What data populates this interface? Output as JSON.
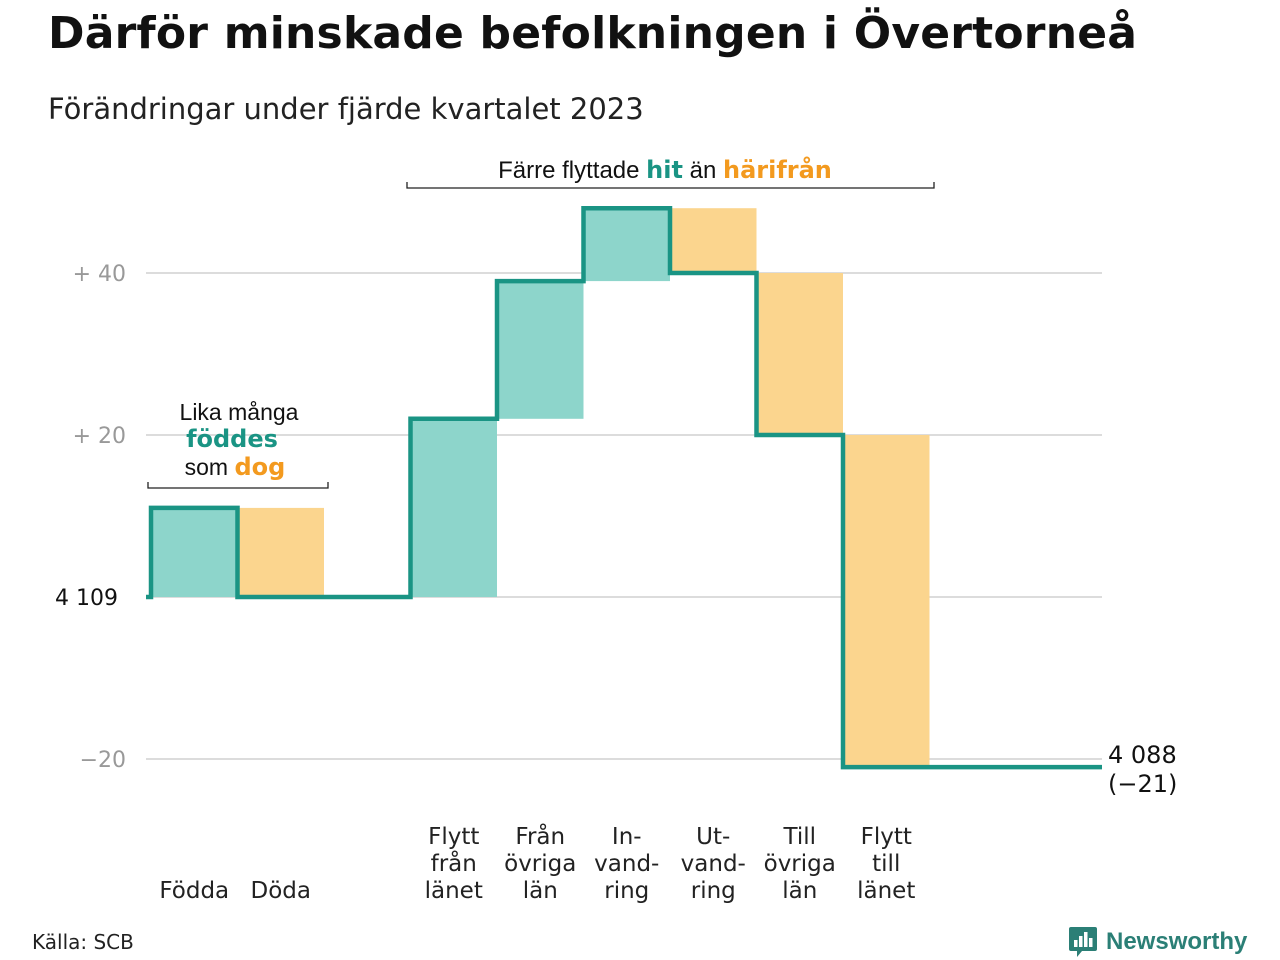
{
  "title": "Därför minskade befolkningen i Övertorneå",
  "subtitle": "Förändringar under fjärde kvartalet 2023",
  "source": "Källa: SCB",
  "brand": {
    "name": "Newsworthy",
    "icon": "bar-chart-speech-bubble-icon"
  },
  "colors": {
    "inflow": "#8dd5cb",
    "outflow": "#fbd58e",
    "line": "#1a9484",
    "accent_hit": "#1a9484",
    "accent_harifran": "#f39a1f",
    "grid": "#dcdcdc",
    "tick": "#999999"
  },
  "annotations": {
    "births_deaths": {
      "line1": "Lika många",
      "word1": "föddes",
      "line3_prefix": "som",
      "word2": "dog"
    },
    "migration": {
      "prefix": "Färre flyttade",
      "word1": "hit",
      "middle": "än",
      "word2": "härifrån"
    }
  },
  "chart_data": {
    "type": "waterfall",
    "title": "Därför minskade befolkningen i Övertorneå",
    "subtitle": "Förändringar under fjärde kvartalet 2023",
    "start_value": 4109,
    "start_label": "4 109",
    "end_value": 4088,
    "end_label": "4 088",
    "end_change_label": "(−21)",
    "ylim": [
      -22,
      48
    ],
    "yticks": [
      {
        "value": 40,
        "label": "+  40"
      },
      {
        "value": 20,
        "label": "+  20"
      },
      {
        "value": -20,
        "label": "−20"
      }
    ],
    "grid": true,
    "steps": [
      {
        "label_lines": [
          "Födda"
        ],
        "change": 11,
        "kind": "inflow"
      },
      {
        "label_lines": [
          "Döda"
        ],
        "change": -11,
        "kind": "outflow"
      },
      {
        "label_lines": [],
        "change": 0,
        "kind": "gap"
      },
      {
        "label_lines": [
          "Flytt",
          "från",
          "länet"
        ],
        "change": 22,
        "kind": "inflow"
      },
      {
        "label_lines": [
          "Från",
          "övriga",
          "län"
        ],
        "change": 17,
        "kind": "inflow"
      },
      {
        "label_lines": [
          "In-",
          "vand-",
          "ring"
        ],
        "change": 9,
        "kind": "inflow"
      },
      {
        "label_lines": [
          "Ut-",
          "vand-",
          "ring"
        ],
        "change": -8,
        "kind": "outflow"
      },
      {
        "label_lines": [
          "Till",
          "övriga",
          "län"
        ],
        "change": -20,
        "kind": "outflow"
      },
      {
        "label_lines": [
          "Flytt",
          "till",
          "länet"
        ],
        "change": -41,
        "kind": "outflow"
      }
    ]
  }
}
